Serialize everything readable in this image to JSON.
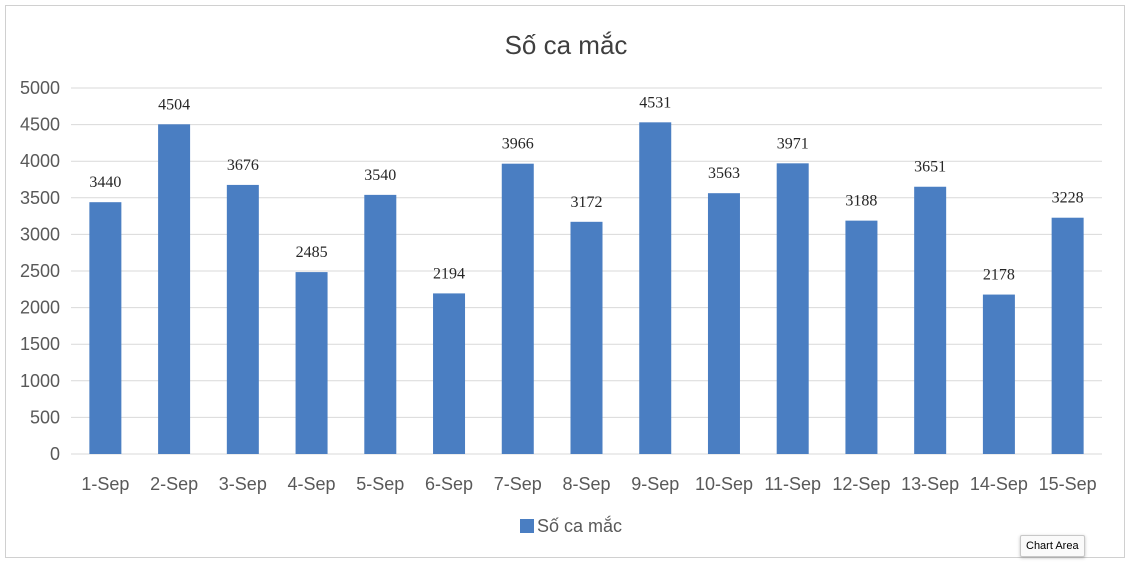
{
  "chart_data": {
    "type": "bar",
    "title": "Số ca mắc",
    "categories": [
      "1-Sep",
      "2-Sep",
      "3-Sep",
      "4-Sep",
      "5-Sep",
      "6-Sep",
      "7-Sep",
      "8-Sep",
      "9-Sep",
      "10-Sep",
      "11-Sep",
      "12-Sep",
      "13-Sep",
      "14-Sep",
      "15-Sep"
    ],
    "series": [
      {
        "name": "Số ca mắc",
        "values": [
          3440,
          4504,
          3676,
          2485,
          3540,
          2194,
          3966,
          3172,
          4531,
          3563,
          3971,
          3188,
          3651,
          2178,
          3228
        ]
      }
    ],
    "ylim": [
      0,
      5000
    ],
    "yticks": [
      0,
      500,
      1000,
      1500,
      2000,
      2500,
      3000,
      3500,
      4000,
      4500,
      5000
    ],
    "grid": true,
    "legend_position": "bottom",
    "colors": {
      "bar": "#4a7ec2",
      "grid": "#d9d9d9"
    }
  },
  "tooltip": {
    "text": "Chart Area"
  }
}
